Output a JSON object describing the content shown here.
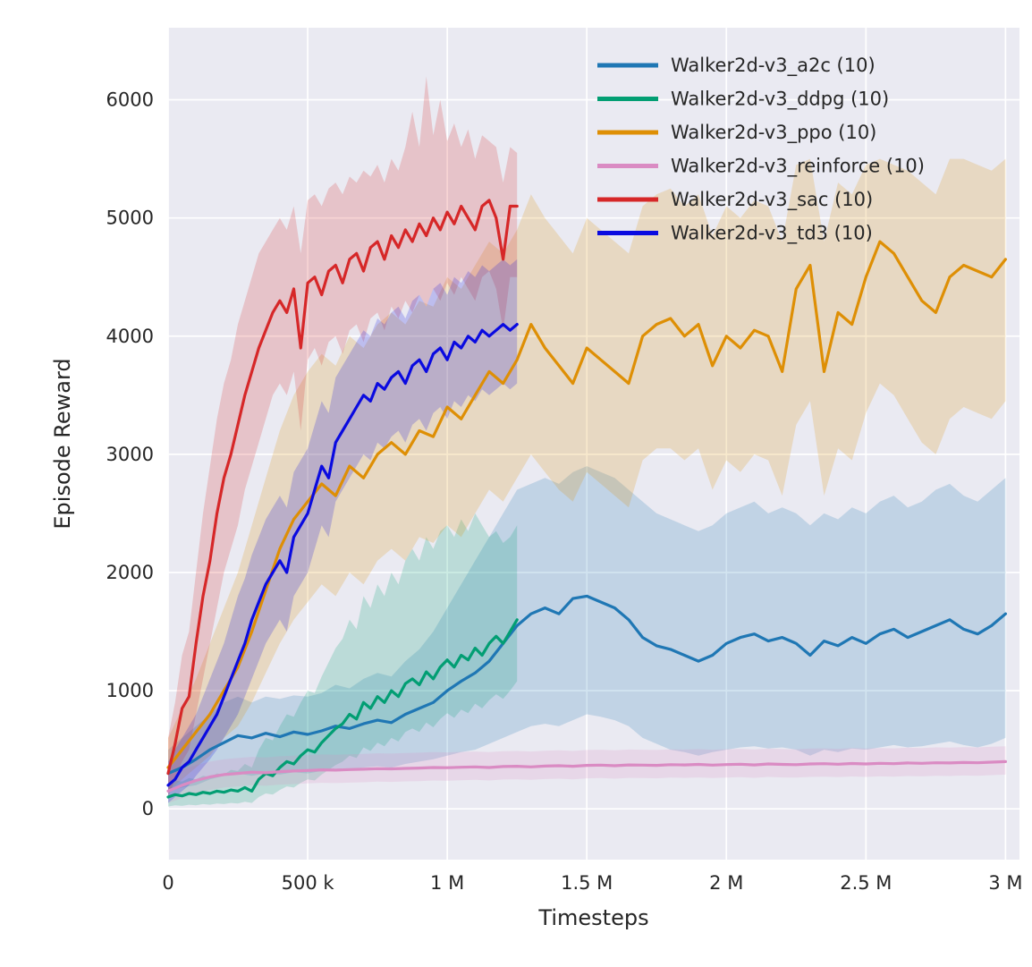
{
  "figure": {
    "plot_bg": "#eaeaf2",
    "grid_color": "#ffffff",
    "text_color": "#262626"
  },
  "chart_data": {
    "type": "line",
    "title": "",
    "xlabel": "Timesteps",
    "ylabel": "Episode Reward",
    "xlim": [
      0,
      3050000
    ],
    "ylim": [
      -430,
      6610
    ],
    "grid": true,
    "legend_position": "upper right",
    "band_alpha": 0.2,
    "line_width": 3.2,
    "x_ticks": [
      {
        "value": 0,
        "label": "0"
      },
      {
        "value": 500000,
        "label": "500 k"
      },
      {
        "value": 1000000,
        "label": "1 M"
      },
      {
        "value": 1500000,
        "label": "1.5 M"
      },
      {
        "value": 2000000,
        "label": "2 M"
      },
      {
        "value": 2500000,
        "label": "2.5 M"
      },
      {
        "value": 3000000,
        "label": "3 M"
      }
    ],
    "y_ticks": [
      {
        "value": 0,
        "label": "0"
      },
      {
        "value": 1000,
        "label": "1000"
      },
      {
        "value": 2000,
        "label": "2000"
      },
      {
        "value": 3000,
        "label": "3000"
      },
      {
        "value": 4000,
        "label": "4000"
      },
      {
        "value": 5000,
        "label": "5000"
      },
      {
        "value": 6000,
        "label": "6000"
      }
    ],
    "series": [
      {
        "name": "Walker2d-v3_a2c (10)",
        "color": "#1f77b4",
        "x_step": 50000,
        "values": [
          300,
          350,
          420,
          500,
          560,
          620,
          600,
          640,
          610,
          650,
          630,
          660,
          700,
          680,
          720,
          750,
          730,
          800,
          850,
          900,
          1000,
          1080,
          1150,
          1250,
          1400,
          1550,
          1650,
          1700,
          1650,
          1780,
          1800,
          1750,
          1700,
          1600,
          1450,
          1380,
          1350,
          1300,
          1250,
          1300,
          1400,
          1450,
          1480,
          1420,
          1450,
          1400,
          1300,
          1420,
          1380,
          1450,
          1400,
          1480,
          1520,
          1450,
          1500,
          1550,
          1600,
          1520,
          1480,
          1550,
          1650
        ],
        "lower": [
          150,
          180,
          200,
          250,
          280,
          300,
          280,
          300,
          290,
          310,
          300,
          320,
          340,
          330,
          350,
          360,
          350,
          380,
          400,
          420,
          450,
          480,
          500,
          550,
          600,
          650,
          700,
          720,
          700,
          750,
          800,
          780,
          750,
          700,
          600,
          550,
          500,
          480,
          450,
          480,
          500,
          520,
          530,
          510,
          520,
          500,
          450,
          500,
          480,
          510,
          500,
          520,
          540,
          520,
          530,
          550,
          570,
          540,
          520,
          550,
          600
        ],
        "upper": [
          500,
          600,
          700,
          800,
          900,
          950,
          900,
          950,
          930,
          960,
          950,
          980,
          1050,
          1020,
          1100,
          1150,
          1120,
          1250,
          1350,
          1500,
          1700,
          1900,
          2100,
          2300,
          2500,
          2700,
          2750,
          2800,
          2750,
          2850,
          2900,
          2850,
          2800,
          2700,
          2600,
          2500,
          2450,
          2400,
          2350,
          2400,
          2500,
          2550,
          2600,
          2500,
          2550,
          2500,
          2400,
          2500,
          2450,
          2550,
          2500,
          2600,
          2650,
          2550,
          2600,
          2700,
          2750,
          2650,
          2600,
          2700,
          2800
        ]
      },
      {
        "name": "Walker2d-v3_ddpg (10)",
        "color": "#029e73",
        "x_step": 25000,
        "values": [
          100,
          120,
          110,
          130,
          120,
          140,
          130,
          150,
          140,
          160,
          150,
          180,
          150,
          250,
          300,
          280,
          350,
          400,
          380,
          450,
          500,
          480,
          560,
          620,
          680,
          720,
          800,
          760,
          900,
          850,
          950,
          900,
          1000,
          950,
          1060,
          1100,
          1050,
          1160,
          1100,
          1200,
          1260,
          1200,
          1300,
          1260,
          1360,
          1300,
          1400,
          1460,
          1400,
          1500,
          1600
        ],
        "lower": [
          20,
          30,
          25,
          35,
          30,
          40,
          35,
          45,
          40,
          50,
          45,
          60,
          50,
          100,
          130,
          120,
          160,
          190,
          180,
          220,
          250,
          240,
          290,
          330,
          370,
          400,
          450,
          430,
          520,
          490,
          560,
          530,
          600,
          570,
          650,
          680,
          650,
          730,
          690,
          760,
          810,
          770,
          840,
          810,
          890,
          850,
          920,
          970,
          930,
          1000,
          1080
        ],
        "upper": [
          200,
          240,
          230,
          260,
          250,
          280,
          270,
          300,
          290,
          330,
          320,
          380,
          350,
          500,
          600,
          580,
          700,
          800,
          780,
          900,
          1000,
          980,
          1120,
          1240,
          1360,
          1440,
          1600,
          1520,
          1800,
          1700,
          1900,
          1800,
          2000,
          1900,
          2100,
          2200,
          2100,
          2300,
          2200,
          2350,
          2400,
          2300,
          2450,
          2350,
          2500,
          2400,
          2300,
          2350,
          2250,
          2300,
          2400
        ]
      },
      {
        "name": "Walker2d-v3_ppo (10)",
        "color": "#de8f05",
        "x_step": 50000,
        "values": [
          350,
          500,
          650,
          800,
          1000,
          1200,
          1500,
          1850,
          2200,
          2450,
          2600,
          2750,
          2650,
          2900,
          2800,
          3000,
          3100,
          3000,
          3200,
          3150,
          3400,
          3300,
          3500,
          3700,
          3600,
          3800,
          4100,
          3900,
          3750,
          3600,
          3900,
          3800,
          3700,
          3600,
          4000,
          4100,
          4150,
          4000,
          4100,
          3750,
          4000,
          3900,
          4050,
          4000,
          3700,
          4400,
          4600,
          3700,
          4200,
          4100,
          4500,
          4800,
          4700,
          4500,
          4300,
          4200,
          4500,
          4600,
          4550,
          4500,
          4650
        ],
        "lower": [
          150,
          250,
          350,
          450,
          600,
          700,
          900,
          1150,
          1400,
          1600,
          1750,
          1900,
          1800,
          2000,
          1900,
          2100,
          2200,
          2100,
          2300,
          2250,
          2400,
          2300,
          2500,
          2700,
          2600,
          2800,
          3000,
          2850,
          2700,
          2600,
          2850,
          2750,
          2650,
          2550,
          2950,
          3050,
          3050,
          2950,
          3050,
          2700,
          2950,
          2850,
          3000,
          2950,
          2650,
          3250,
          3450,
          2650,
          3050,
          2950,
          3350,
          3600,
          3500,
          3300,
          3100,
          3000,
          3300,
          3400,
          3350,
          3300,
          3450
        ],
        "upper": [
          600,
          850,
          1100,
          1400,
          1700,
          2000,
          2400,
          2800,
          3200,
          3500,
          3700,
          3850,
          3750,
          4000,
          3900,
          4100,
          4200,
          4100,
          4300,
          4250,
          4500,
          4400,
          4600,
          4800,
          4700,
          4900,
          5200,
          5000,
          4850,
          4700,
          5000,
          4900,
          4800,
          4700,
          5100,
          5200,
          5250,
          5100,
          5200,
          4850,
          5100,
          5000,
          5150,
          5100,
          4800,
          5450,
          5500,
          4800,
          5300,
          5200,
          5450,
          5500,
          5450,
          5400,
          5300,
          5200,
          5500,
          5500,
          5450,
          5400,
          5500
        ]
      },
      {
        "name": "Walker2d-v3_reinforce (10)",
        "color": "#da8bc3",
        "x_step": 50000,
        "values": [
          150,
          200,
          240,
          270,
          290,
          300,
          310,
          305,
          315,
          320,
          325,
          330,
          328,
          332,
          335,
          340,
          338,
          342,
          345,
          350,
          348,
          352,
          355,
          350,
          358,
          360,
          355,
          362,
          365,
          360,
          368,
          370,
          365,
          372,
          370,
          368,
          374,
          372,
          376,
          370,
          375,
          378,
          372,
          380,
          376,
          374,
          380,
          382,
          378,
          384,
          380,
          385,
          382,
          388,
          385,
          390,
          388,
          392,
          390,
          395,
          400
        ],
        "lower": [
          50,
          90,
          130,
          160,
          180,
          190,
          200,
          195,
          205,
          210,
          215,
          220,
          218,
          222,
          225,
          230,
          228,
          232,
          235,
          240,
          238,
          242,
          245,
          240,
          248,
          250,
          245,
          252,
          255,
          250,
          258,
          260,
          255,
          262,
          260,
          258,
          264,
          262,
          266,
          260,
          265,
          268,
          262,
          270,
          266,
          264,
          270,
          272,
          268,
          274,
          270,
          275,
          272,
          278,
          275,
          280,
          278,
          282,
          280,
          285,
          290
        ],
        "upper": [
          280,
          330,
          370,
          400,
          420,
          430,
          440,
          435,
          445,
          450,
          455,
          460,
          458,
          462,
          465,
          470,
          468,
          472,
          475,
          480,
          478,
          482,
          485,
          480,
          488,
          490,
          485,
          492,
          495,
          490,
          498,
          500,
          495,
          502,
          500,
          498,
          504,
          502,
          506,
          500,
          505,
          508,
          502,
          510,
          506,
          504,
          510,
          512,
          508,
          514,
          510,
          515,
          512,
          518,
          515,
          520,
          518,
          522,
          520,
          525,
          530
        ]
      },
      {
        "name": "Walker2d-v3_sac (10)",
        "color": "#d62728",
        "x_step": 25000,
        "values": [
          300,
          550,
          850,
          950,
          1400,
          1800,
          2100,
          2500,
          2800,
          3000,
          3250,
          3500,
          3700,
          3900,
          4050,
          4200,
          4300,
          4200,
          4400,
          3900,
          4450,
          4500,
          4350,
          4550,
          4600,
          4450,
          4650,
          4700,
          4550,
          4750,
          4800,
          4650,
          4850,
          4750,
          4900,
          4800,
          4950,
          4850,
          5000,
          4900,
          5050,
          4950,
          5100,
          5000,
          4900,
          5100,
          5150,
          5000,
          4650,
          5100,
          5100
        ],
        "lower": [
          100,
          250,
          400,
          500,
          800,
          1100,
          1400,
          1700,
          2000,
          2200,
          2400,
          2700,
          2900,
          3100,
          3300,
          3500,
          3600,
          3500,
          3700,
          3200,
          3800,
          3900,
          3750,
          3950,
          4000,
          3850,
          4050,
          4100,
          3950,
          4150,
          4200,
          4050,
          4250,
          4150,
          4300,
          4200,
          4350,
          4250,
          4400,
          4300,
          4450,
          4350,
          4500,
          4400,
          4300,
          4500,
          4550,
          4400,
          4050,
          4500,
          4500
        ],
        "upper": [
          600,
          900,
          1300,
          1500,
          2000,
          2500,
          2900,
          3300,
          3600,
          3800,
          4100,
          4300,
          4500,
          4700,
          4800,
          4900,
          5000,
          4900,
          5100,
          4700,
          5150,
          5200,
          5100,
          5250,
          5300,
          5200,
          5350,
          5300,
          5400,
          5350,
          5450,
          5300,
          5500,
          5400,
          5600,
          5900,
          5600,
          6200,
          5700,
          6000,
          5650,
          5800,
          5600,
          5750,
          5500,
          5700,
          5650,
          5600,
          5300,
          5600,
          5550
        ]
      },
      {
        "name": "Walker2d-v3_td3 (10)",
        "color": "#0a0ae0",
        "x_step": 25000,
        "values": [
          200,
          250,
          350,
          400,
          500,
          600,
          700,
          800,
          950,
          1100,
          1250,
          1400,
          1600,
          1750,
          1900,
          2000,
          2100,
          2000,
          2300,
          2400,
          2500,
          2700,
          2900,
          2800,
          3100,
          3200,
          3300,
          3400,
          3500,
          3450,
          3600,
          3550,
          3650,
          3700,
          3600,
          3750,
          3800,
          3700,
          3850,
          3900,
          3800,
          3950,
          3900,
          4000,
          3950,
          4050,
          4000,
          4050,
          4100,
          4050,
          4100
        ],
        "lower": [
          50,
          100,
          150,
          200,
          280,
          350,
          420,
          500,
          600,
          700,
          800,
          950,
          1100,
          1250,
          1400,
          1500,
          1600,
          1500,
          1800,
          1900,
          2000,
          2200,
          2400,
          2300,
          2600,
          2700,
          2800,
          2900,
          3000,
          2950,
          3100,
          3050,
          3150,
          3200,
          3100,
          3250,
          3300,
          3200,
          3350,
          3400,
          3300,
          3450,
          3400,
          3500,
          3450,
          3550,
          3500,
          3550,
          3600,
          3550,
          3600
        ],
        "upper": [
          400,
          500,
          600,
          700,
          800,
          950,
          1100,
          1250,
          1400,
          1600,
          1800,
          1950,
          2150,
          2300,
          2450,
          2550,
          2650,
          2550,
          2850,
          2950,
          3050,
          3250,
          3450,
          3350,
          3650,
          3750,
          3850,
          3950,
          4050,
          4000,
          4150,
          4100,
          4200,
          4250,
          4150,
          4300,
          4350,
          4250,
          4400,
          4450,
          4350,
          4500,
          4450,
          4550,
          4500,
          4600,
          4550,
          4600,
          4650,
          4600,
          4650
        ]
      }
    ]
  }
}
